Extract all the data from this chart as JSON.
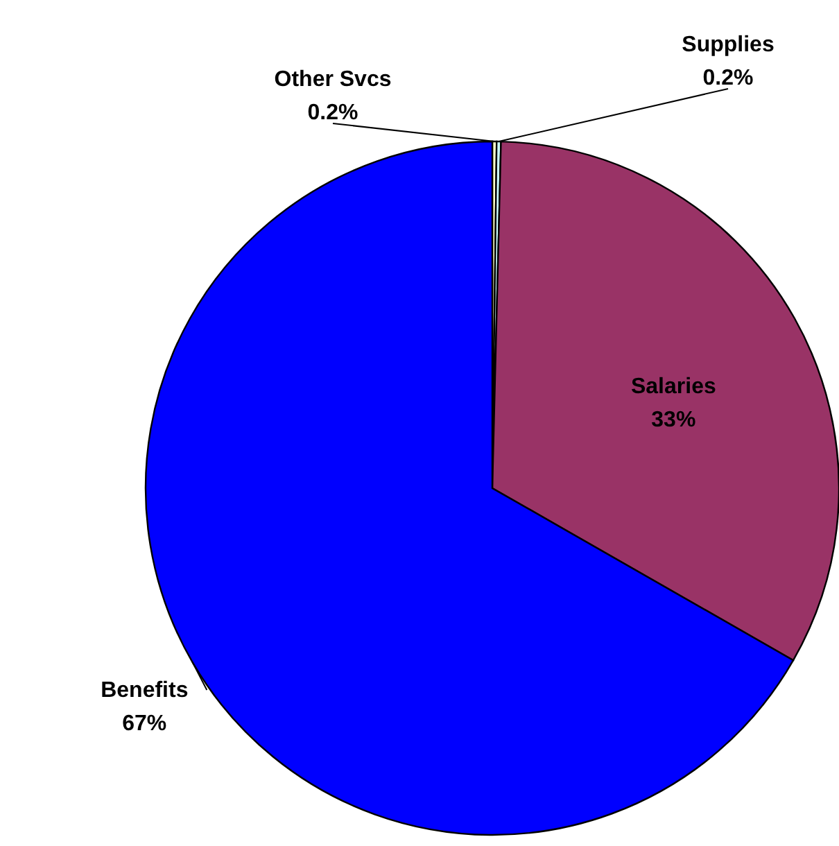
{
  "chart_data": {
    "type": "pie",
    "categories": [
      "Other Svcs",
      "Supplies",
      "Salaries",
      "Benefits"
    ],
    "values": [
      0.2,
      0.2,
      33,
      67
    ],
    "colors": [
      "#ffffcc",
      "#ccffff",
      "#993366",
      "#0000ff"
    ],
    "value_labels": [
      "0.2%",
      "0.2%",
      "33%",
      "67%"
    ]
  }
}
